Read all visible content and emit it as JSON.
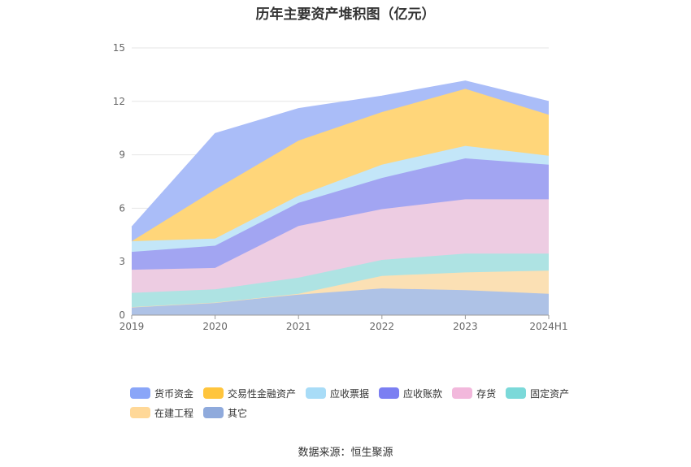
{
  "chart_data": {
    "type": "area",
    "stacked": true,
    "title": "历年主要资产堆积图（亿元）",
    "source": "数据来源：恒生聚源",
    "categories": [
      "2019",
      "2020",
      "2021",
      "2022",
      "2023",
      "2024H1"
    ],
    "ylim": [
      0,
      15
    ],
    "yticks": [
      "0",
      "3",
      "6",
      "9",
      "12",
      "15"
    ],
    "legend_position": "bottom",
    "series": [
      {
        "name": "其它",
        "color": "#8FAADC",
        "fill": "#aec2e6",
        "values": [
          0.45,
          0.7,
          1.15,
          1.5,
          1.4,
          1.2
        ]
      },
      {
        "name": "在建工程",
        "color": "#FFD898",
        "fill": "#fbe0b4",
        "values": [
          0.0,
          0.0,
          0.05,
          0.7,
          1.0,
          1.3
        ]
      },
      {
        "name": "固定资产",
        "color": "#7BD9D9",
        "fill": "#aee3e3",
        "values": [
          0.8,
          0.75,
          0.9,
          0.9,
          1.05,
          0.95
        ]
      },
      {
        "name": "存货",
        "color": "#F2B8DC",
        "fill": "#edcce2",
        "values": [
          1.3,
          1.2,
          2.9,
          2.85,
          3.05,
          3.05
        ]
      },
      {
        "name": "应收账款",
        "color": "#7B7FF2",
        "fill": "#a2a5f2",
        "values": [
          1.0,
          1.25,
          1.3,
          1.75,
          2.3,
          1.95
        ]
      },
      {
        "name": "应收票据",
        "color": "#A8DCF7",
        "fill": "#c3e6f8",
        "values": [
          0.6,
          0.4,
          0.4,
          0.75,
          0.7,
          0.5
        ]
      },
      {
        "name": "交易性金融资产",
        "color": "#FFC53D",
        "fill": "#ffd67a",
        "values": [
          0.0,
          2.75,
          3.1,
          2.95,
          3.2,
          2.3
        ]
      },
      {
        "name": "货币资金",
        "color": "#8AA6F8",
        "fill": "#aabdf8",
        "values": [
          0.8,
          3.15,
          1.8,
          0.9,
          0.45,
          0.75
        ]
      }
    ]
  },
  "legend": {
    "row1": [
      "货币资金",
      "交易性金融资产",
      "应收票据",
      "应收账款",
      "存货",
      "固定资产"
    ],
    "row2": [
      "在建工程",
      "其它"
    ]
  },
  "legend_colors": {
    "货币资金": "#8AA6F8",
    "交易性金融资产": "#FFC53D",
    "应收票据": "#A8DCF7",
    "应收账款": "#7B7FF2",
    "存货": "#F2B8DC",
    "固定资产": "#7BD9D9",
    "在建工程": "#FFD898",
    "其它": "#8FAADC"
  }
}
